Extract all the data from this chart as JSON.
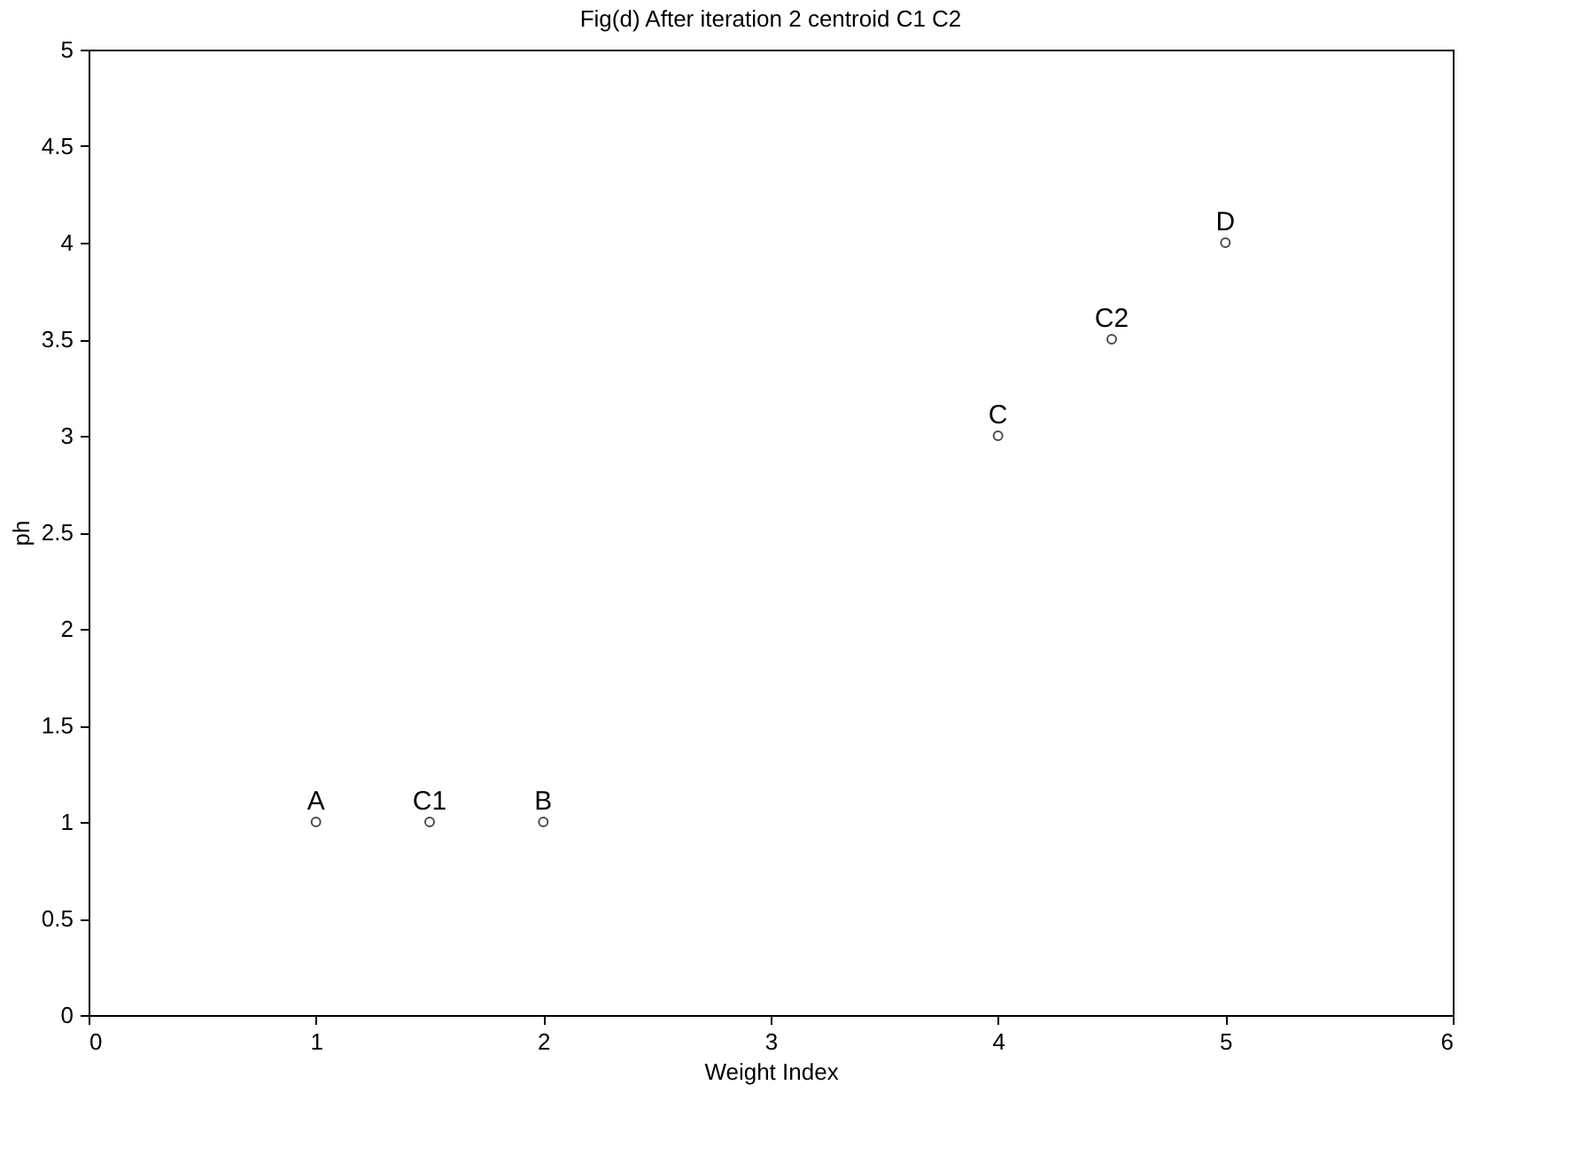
{
  "chart_data": {
    "type": "scatter",
    "title": "Fig(d) After iteration 2 centroid C1 C2",
    "xlabel": "Weight Index",
    "ylabel": "ph",
    "series": [
      {
        "color": "#000000",
        "x": [
          1,
          2,
          1.5,
          4,
          5,
          4.5
        ],
        "values": [
          1,
          1,
          1,
          3,
          4,
          3.5
        ]
      }
    ],
    "annotations": [
      {
        "text": "A",
        "x": 1,
        "y": 1
      },
      {
        "text": "B",
        "x": 2,
        "y": 1
      },
      {
        "text": "C1",
        "x": 1.5,
        "y": 1
      },
      {
        "text": "C",
        "x": 4,
        "y": 3
      },
      {
        "text": "D",
        "x": 5,
        "y": 4
      },
      {
        "text": "C2",
        "x": 4.5,
        "y": 3.5
      }
    ],
    "xlim": [
      0,
      6
    ],
    "xticks": [
      0,
      1,
      2,
      3,
      4,
      5,
      6
    ],
    "ylim": [
      0,
      5
    ],
    "yticks": [
      0,
      0.5,
      1,
      1.5,
      2,
      2.5,
      3,
      3.5,
      4,
      4.5,
      5
    ],
    "grid": false,
    "marker": "circle"
  }
}
